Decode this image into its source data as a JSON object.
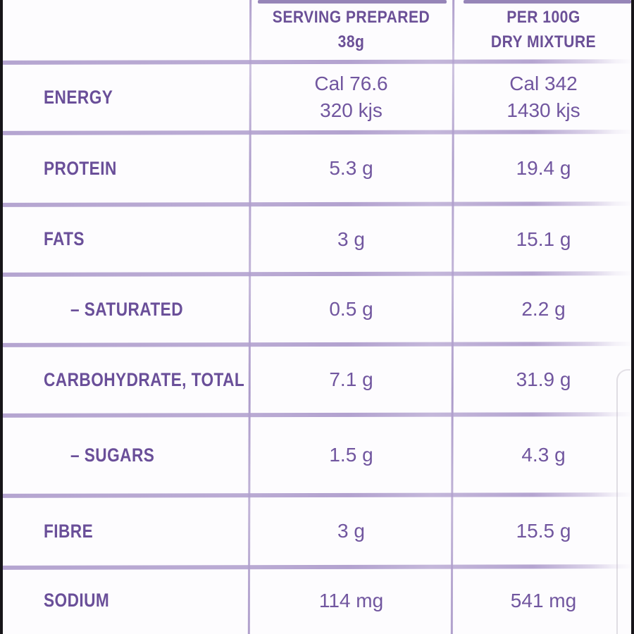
{
  "colors": {
    "text_purple": "#6a4f99",
    "line_lavender": "#b1a0ce",
    "edge_dark": "#171519",
    "background": "#fdfcfe"
  },
  "header": {
    "serving_label": "SERVING PREPARED\n38g",
    "per100_label": "PER 100G\nDRY MIXTURE"
  },
  "rows": [
    {
      "label": "ENERGY",
      "serving": "Cal 76.6\n320 kjs",
      "per100": "Cal 342\n1430 kjs"
    },
    {
      "label": "PROTEIN",
      "serving": "5.3 g",
      "per100": "19.4 g"
    },
    {
      "label": "FATS",
      "serving": "3 g",
      "per100": "15.1 g"
    },
    {
      "label": "– SATURATED",
      "serving": "0.5 g",
      "per100": "2.2 g"
    },
    {
      "label": "CARBOHYDRATE, TOTAL",
      "serving": "7.1 g",
      "per100": "31.9 g"
    },
    {
      "label": "– SUGARS",
      "serving": "1.5 g",
      "per100": "4.3 g"
    },
    {
      "label": "FIBRE",
      "serving": "3 g",
      "per100": "15.5 g"
    },
    {
      "label": "SODIUM",
      "serving": "114 mg",
      "per100": "541 mg"
    }
  ]
}
